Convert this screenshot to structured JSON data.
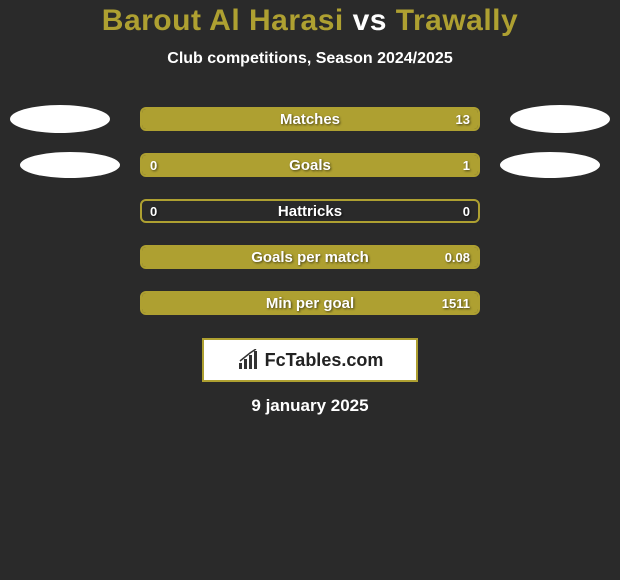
{
  "title": {
    "player1": "Barout Al Harasi",
    "vs": "vs",
    "player2": "Trawally",
    "player1_color": "#aea031",
    "vs_color": "#ffffff",
    "player2_color": "#aea031"
  },
  "subtitle": "Club competitions, Season 2024/2025",
  "accent_color": "#aea031",
  "background_color": "#2a2a2a",
  "stats": [
    {
      "label": "Matches",
      "left_value": "",
      "right_value": "13",
      "left_fill_pct": 0,
      "right_fill_pct": 100,
      "fill_color_left": "#aea031",
      "fill_color_right": "#aea031",
      "show_left_avatar": true,
      "show_right_avatar": true,
      "left_avatar_class": "avatar-left-1",
      "right_avatar_class": "avatar-right-1"
    },
    {
      "label": "Goals",
      "left_value": "0",
      "right_value": "1",
      "left_fill_pct": 18,
      "right_fill_pct": 82,
      "fill_color_left": "#aea031",
      "fill_color_right": "#aea031",
      "show_left_avatar": true,
      "show_right_avatar": true,
      "left_avatar_class": "avatar-left-2",
      "right_avatar_class": "avatar-right-2"
    },
    {
      "label": "Hattricks",
      "left_value": "0",
      "right_value": "0",
      "left_fill_pct": 0,
      "right_fill_pct": 0,
      "fill_color_left": "#aea031",
      "fill_color_right": "#aea031",
      "show_left_avatar": false,
      "show_right_avatar": false
    },
    {
      "label": "Goals per match",
      "left_value": "",
      "right_value": "0.08",
      "left_fill_pct": 0,
      "right_fill_pct": 100,
      "fill_color_left": "#aea031",
      "fill_color_right": "#aea031",
      "show_left_avatar": false,
      "show_right_avatar": false
    },
    {
      "label": "Min per goal",
      "left_value": "",
      "right_value": "1511",
      "left_fill_pct": 0,
      "right_fill_pct": 100,
      "fill_color_left": "#aea031",
      "fill_color_right": "#aea031",
      "show_left_avatar": false,
      "show_right_avatar": false
    }
  ],
  "brand": {
    "text": "FcTables.com",
    "border_color": "#aea031",
    "icon_color": "#333333"
  },
  "date": "9 january 2025"
}
